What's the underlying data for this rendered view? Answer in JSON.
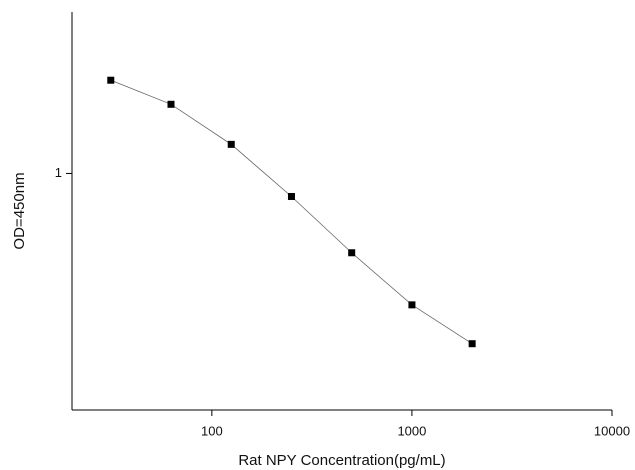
{
  "chart_data": {
    "type": "line",
    "x_label": "Rat NPY Concentration(pg/mL)",
    "y_label": "OD=450nm",
    "x": [
      31.25,
      62.5,
      125,
      250,
      500,
      1000,
      2000
    ],
    "values": [
      1.886,
      1.601,
      1.219,
      0.855,
      0.583,
      0.409,
      0.314
    ],
    "color": "#000000",
    "line_color": "#666666",
    "xscale": "log",
    "yscale": "log",
    "xlim": [
      20,
      10000
    ],
    "ylim": [
      0.2,
      3
    ],
    "xticks": [
      100,
      1000,
      10000
    ],
    "yticks": [
      1
    ]
  }
}
